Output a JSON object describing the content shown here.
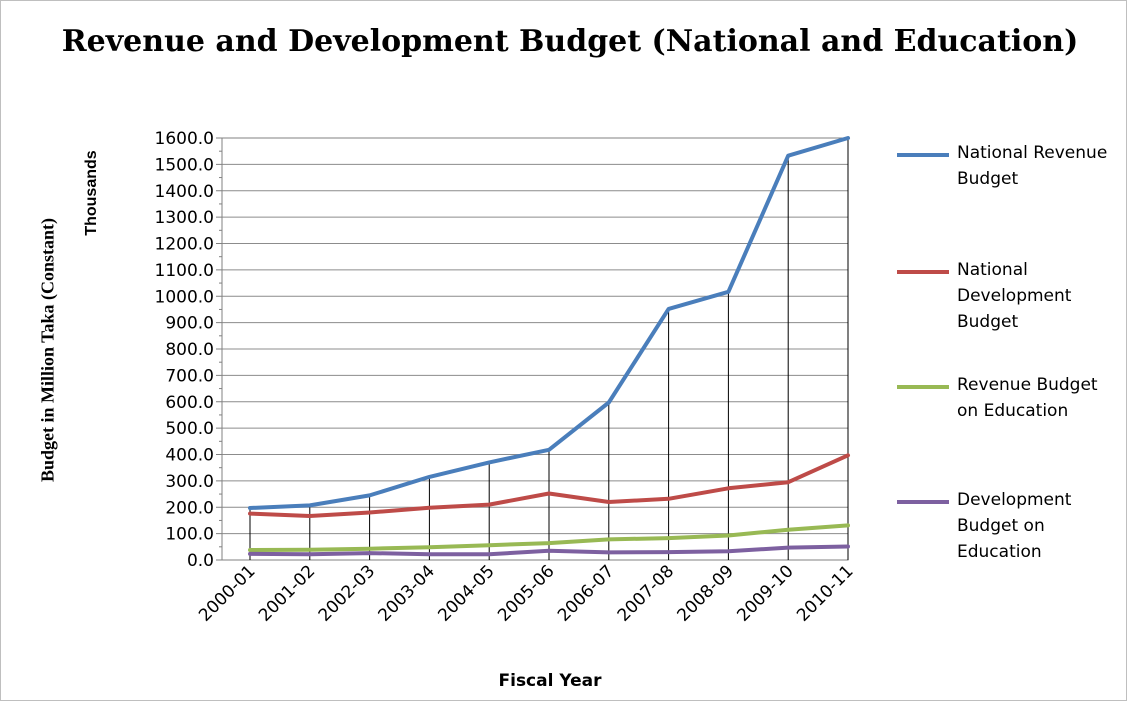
{
  "chart_data": {
    "type": "line",
    "title": "Revenue and Development Budget (National and Education)",
    "ylabel": "Budget in Million Taka (Constant)",
    "yunit": "Thousands",
    "xlabel": "Fiscal Year",
    "ylim": [
      0,
      1600
    ],
    "ytick_step": 100,
    "ytick_labels": [
      "0.0",
      "100.0",
      "200.0",
      "300.0",
      "400.0",
      "500.0",
      "600.0",
      "700.0",
      "800.0",
      "900.0",
      "1000.0",
      "1100.0",
      "1200.0",
      "1300.0",
      "1400.0",
      "1500.0",
      "1600.0"
    ],
    "grid": "horizontal",
    "legend_position": "right",
    "categories": [
      "2000-01",
      "2001-02",
      "2002-03",
      "2003-04",
      "2004-05",
      "2005-06",
      "2006-07",
      "2007-08",
      "2008-09",
      "2009-10",
      "2010-11"
    ],
    "series": [
      {
        "name": "National Revenue Budget",
        "color": "#4a7ebb",
        "values": [
          197,
          207,
          245,
          315,
          370,
          418,
          597,
          952,
          1017,
          1533,
          1600
        ]
      },
      {
        "name": "National Development Budget",
        "color": "#be4b48",
        "values": [
          176,
          167,
          180,
          198,
          210,
          252,
          220,
          232,
          272,
          295,
          397
        ]
      },
      {
        "name": "Revenue Budget on Education",
        "color": "#98b954",
        "values": [
          38,
          39,
          43,
          48,
          56,
          64,
          78,
          83,
          93,
          115,
          131
        ]
      },
      {
        "name": "Development Budget on Education",
        "color": "#7d60a0",
        "values": [
          23,
          22,
          26,
          22,
          22,
          35,
          29,
          30,
          33,
          47,
          51
        ]
      }
    ]
  }
}
